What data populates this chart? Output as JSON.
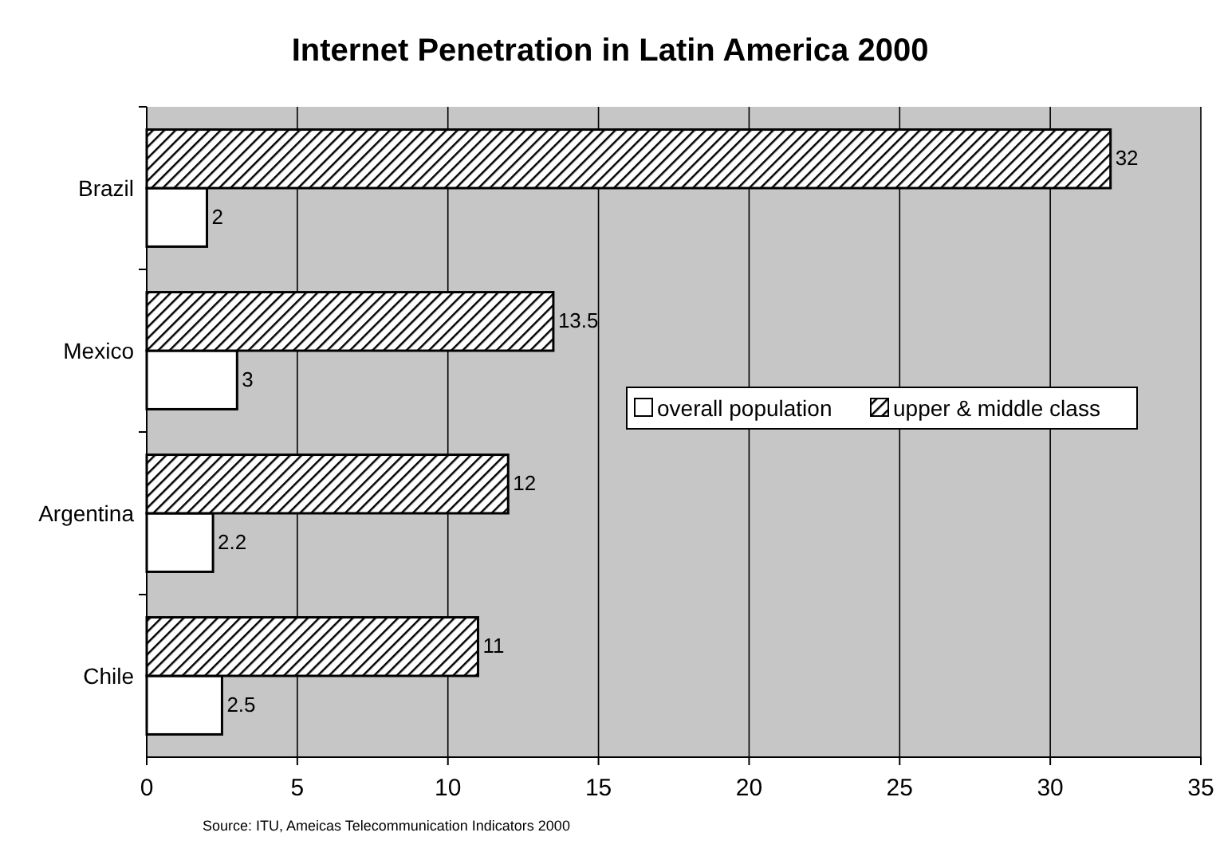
{
  "chart_data": {
    "type": "bar",
    "orientation": "horizontal",
    "title": "Internet Penetration in Latin America 2000",
    "categories": [
      "Brazil",
      "Mexico",
      "Argentina",
      "Chile"
    ],
    "series": [
      {
        "name": "overall population",
        "color": "#ffffff",
        "values": [
          2,
          3,
          2.2,
          2.5
        ]
      },
      {
        "name": "upper & middle class",
        "color": "#000000",
        "values": [
          32,
          13.5,
          12,
          11
        ]
      }
    ],
    "xlim": [
      0,
      35
    ],
    "xticks": [
      0,
      5,
      10,
      15,
      20,
      25,
      30,
      35
    ],
    "grid": "x",
    "legend": "right",
    "data_labels": true,
    "annotations": [
      "Source: ITU, Ameicas Telecommunication Indicators 2000"
    ]
  }
}
